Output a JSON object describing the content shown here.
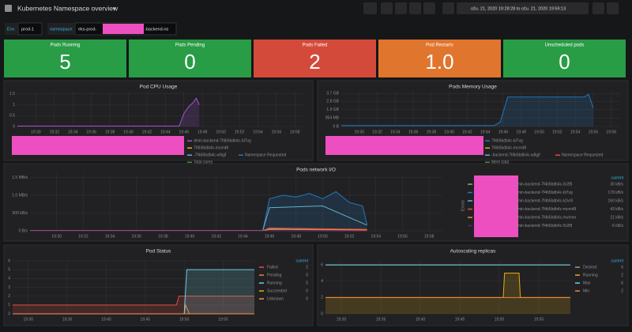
{
  "header": {
    "title": "Kubernetes Namespace overview",
    "time_range": "ožu. 21, 2020 19:28:28 to ožu. 21, 2020 19:59:13"
  },
  "variables": [
    {
      "label": "Env",
      "value": "prod-1"
    },
    {
      "label": "namespace",
      "value_start": "eks-prod-",
      "value_end": "-backend-ns"
    }
  ],
  "stats": [
    {
      "title": "Pods Running",
      "value": "5",
      "color": "#299c46"
    },
    {
      "title": "Pods Pending",
      "value": "0",
      "color": "#299c46"
    },
    {
      "title": "Pods Failed",
      "value": "2",
      "color": "#d44a3a"
    },
    {
      "title": "Pod Restarts",
      "value": "1.0",
      "color": "#e0752d"
    },
    {
      "title": "Unscheduled pods",
      "value": "0",
      "color": "#299c46"
    }
  ],
  "graphs": [
    {
      "title": "Pod CPU Usage",
      "legend": "bottom",
      "ylim": [
        0,
        1.6
      ],
      "yticks": [
        0,
        0.5,
        1,
        1.5
      ],
      "xlim": [
        "19:28",
        "19:59"
      ],
      "xticks": [
        "19:30",
        "19:32",
        "19:34",
        "19:36",
        "19:38",
        "19:40",
        "19:42",
        "19:44",
        "19:46",
        "19:48",
        "19:50",
        "19:52",
        "19:54",
        "19:56",
        "19:58"
      ],
      "series": [
        {
          "name": "dmin-backend-7f4b5bdb4c-bl7vg",
          "color": "#a352cc",
          "fill": true,
          "x": [
            "19:28",
            "19:45:30",
            "19:46",
            "19:46:30",
            "19:47",
            "19:47:20",
            "19:47:40"
          ],
          "values": [
            0.02,
            0.02,
            0.6,
            0.9,
            1.1,
            1.3,
            1.0
          ]
        },
        {
          "name": "7f4b5bdb4c-mcm48",
          "color": "#e5ac0e",
          "x": [],
          "values": []
        },
        {
          "name": "-7f4b5bdb4c-w8gjf",
          "color": "#64b0c8",
          "x": [],
          "values": []
        },
        {
          "name": "Namespace Requested",
          "color": "#1f78c1",
          "x": [],
          "values": []
        },
        {
          "name": "Total cores",
          "color": "#508642",
          "x": [],
          "values": []
        }
      ]
    },
    {
      "title": "Pods Memory Usage",
      "legend": "bottom",
      "ylim": [
        0,
        3.9
      ],
      "yticks": [
        {
          "value": 0,
          "label": "0 B"
        },
        {
          "value": 0.954,
          "label": "954 MB"
        },
        {
          "value": 1.9,
          "label": "1.9 GB"
        },
        {
          "value": 2.8,
          "label": "2.8 GB"
        },
        {
          "value": 3.7,
          "label": "3.7 GB"
        }
      ],
      "xlim": [
        "19:28",
        "19:59"
      ],
      "xticks": [
        "19:30",
        "19:32",
        "19:34",
        "19:36",
        "19:38",
        "19:40",
        "19:42",
        "19:44",
        "19:46",
        "19:48",
        "19:50",
        "19:52",
        "19:54",
        "19:56",
        "19:58"
      ],
      "series": [
        {
          "name": "7f4b5bdb4c-bl7vg",
          "color": "#1f78c1",
          "fill": true,
          "x": [
            "19:28",
            "19:45",
            "19:45:40",
            "19:46:30",
            "19:55",
            "19:55:30",
            "19:56"
          ],
          "values": [
            0.1,
            0.1,
            0.5,
            3.3,
            3.3,
            3.6,
            2.1
          ]
        },
        {
          "name": "7f4b5bdb4c-mcm48",
          "color": "#e5ac0e",
          "x": [],
          "values": []
        },
        {
          "name": "-backend-7f4b5bdb4c-w8gjf",
          "color": "#64b0c8",
          "x": [],
          "values": []
        },
        {
          "name": "Namespace Requested",
          "color": "#e24d42",
          "x": [],
          "values": []
        },
        {
          "name": "Mem total",
          "color": "#508642",
          "x": [],
          "values": []
        }
      ]
    },
    {
      "title": "Pods network I/O",
      "legend": "right",
      "y2_label": "Errors",
      "legend_header": "current",
      "ylim": [
        0,
        1600
      ],
      "yticks": [
        {
          "value": 0,
          "label": "0 B/s"
        },
        {
          "value": 500,
          "label": "500 kB/s"
        },
        {
          "value": 1000,
          "label": "1.0 MB/s"
        },
        {
          "value": 1500,
          "label": "1.5 MB/s"
        }
      ],
      "xlim": [
        "19:28",
        "19:59"
      ],
      "xticks": [
        "19:30",
        "19:32",
        "19:34",
        "19:36",
        "19:38",
        "19:40",
        "19:42",
        "19:44",
        "19:46",
        "19:48",
        "19:50",
        "19:52",
        "19:54",
        "19:56",
        "19:58"
      ],
      "series": [
        {
          "name": "dmin-backend-7f4b5bdb4c-5r2f8",
          "color": "#7eb26d",
          "current": "30 kB/s",
          "x": [
            "19:28",
            "19:45:30",
            "19:46",
            "19:50",
            "19:53:20"
          ],
          "values": [
            5,
            5,
            60,
            40,
            30
          ]
        },
        {
          "name": "dmin-backend-7f4b5bdb4c-bl7vg",
          "color": "#1f78c1",
          "fill": true,
          "current": "178 kB/s",
          "x": [
            "19:28",
            "19:45:30",
            "19:46",
            "19:47",
            "19:48",
            "19:49",
            "19:50",
            "19:51",
            "19:52",
            "19:53",
            "19:53:20"
          ],
          "values": [
            10,
            10,
            900,
            1000,
            950,
            1050,
            900,
            1100,
            800,
            700,
            178
          ]
        },
        {
          "name": "dmin-backend-7f4b5bdb4c-k2vr9",
          "color": "#64b0c8",
          "current": "160 kB/s",
          "x": [
            "19:28",
            "19:45:30",
            "19:46",
            "19:50",
            "19:53:20"
          ],
          "values": [
            8,
            8,
            650,
            700,
            160
          ]
        },
        {
          "name": "dmin-backend-7f4b5bdb4c-mcm48",
          "color": "#e24d42",
          "current": "43 kB/s",
          "x": [
            "19:28",
            "19:45:30",
            "19:46",
            "19:53:20"
          ],
          "values": [
            3,
            3,
            80,
            43
          ]
        },
        {
          "name": "dmin-backend-7f4b5bdb4c-mvmnn",
          "color": "#ef843c",
          "current": "21 kB/s",
          "x": [
            "19:28",
            "19:45:30",
            "19:46",
            "19:53:20"
          ],
          "values": [
            2,
            2,
            40,
            21
          ]
        },
        {
          "name": "dmin-backend-7f4b5bdb4c-5r2f8",
          "color": "#6d1f62",
          "current": "-5 kB/s",
          "x": [
            "19:28",
            "19:45:30",
            "19:53:20"
          ],
          "values": [
            0,
            0,
            -5
          ]
        }
      ]
    },
    {
      "title": "Pod Status",
      "legend": "right",
      "legend_header": "current",
      "ylim": [
        0,
        6
      ],
      "yticks": [
        0,
        1,
        2,
        3,
        4,
        5,
        6
      ],
      "xlim": [
        "19:28",
        "19:59"
      ],
      "xticks": [
        "19:30",
        "19:35",
        "19:40",
        "19:45",
        "19:50",
        "19:55"
      ],
      "series": [
        {
          "name": "Failed",
          "color": "#e24d42",
          "fill": true,
          "current": "2",
          "x": [
            "19:28",
            "19:49",
            "19:49:20",
            "19:59"
          ],
          "values": [
            1,
            1,
            2,
            2
          ]
        },
        {
          "name": "Pending",
          "color": "#ef843c",
          "current": "0",
          "x": [
            "19:28",
            "19:50",
            "19:50:10",
            "19:50:40",
            "19:59"
          ],
          "values": [
            0,
            0,
            1,
            0,
            0
          ]
        },
        {
          "name": "Running",
          "color": "#6ed0e0",
          "fill": true,
          "current": "5",
          "x": [
            "19:28",
            "19:50",
            "19:50:20",
            "19:59"
          ],
          "values": [
            0,
            0,
            5,
            5
          ]
        },
        {
          "name": "Succeeded",
          "color": "#e5ac0e",
          "current": "0",
          "x": [
            "19:28",
            "19:59"
          ],
          "values": [
            0,
            0
          ]
        },
        {
          "name": "Unknown",
          "color": "#f9934e",
          "current": "0",
          "x": [
            "19:28",
            "19:59"
          ],
          "values": [
            0,
            0
          ]
        }
      ]
    },
    {
      "title": "Autoscaling replicas",
      "legend": "right",
      "legend_header": "current",
      "ylim": [
        0,
        6.5
      ],
      "yticks": [
        0,
        2,
        4,
        6
      ],
      "xlim": [
        "19:28",
        "19:59"
      ],
      "xticks": [
        "19:30",
        "19:35",
        "19:40",
        "19:45",
        "19:50",
        "19:55"
      ],
      "series": [
        {
          "name": "Desired",
          "color": "#7eb26d",
          "current": "6",
          "x": [
            "19:28",
            "19:59"
          ],
          "values": [
            6,
            6
          ]
        },
        {
          "name": "Running",
          "color": "#e5ac0e",
          "fill": true,
          "current": "2",
          "x": [
            "19:28",
            "19:50:30",
            "19:50:40",
            "19:52:30",
            "19:52:40",
            "19:59"
          ],
          "values": [
            2,
            2,
            5,
            5,
            2,
            2
          ]
        },
        {
          "name": "Max",
          "color": "#6ed0e0",
          "current": "6",
          "x": [
            "19:28",
            "19:59"
          ],
          "values": [
            6,
            6
          ]
        },
        {
          "name": "Min",
          "color": "#ef843c",
          "current": "2",
          "x": [
            "19:28",
            "19:59"
          ],
          "values": [
            2,
            2
          ]
        }
      ]
    }
  ]
}
